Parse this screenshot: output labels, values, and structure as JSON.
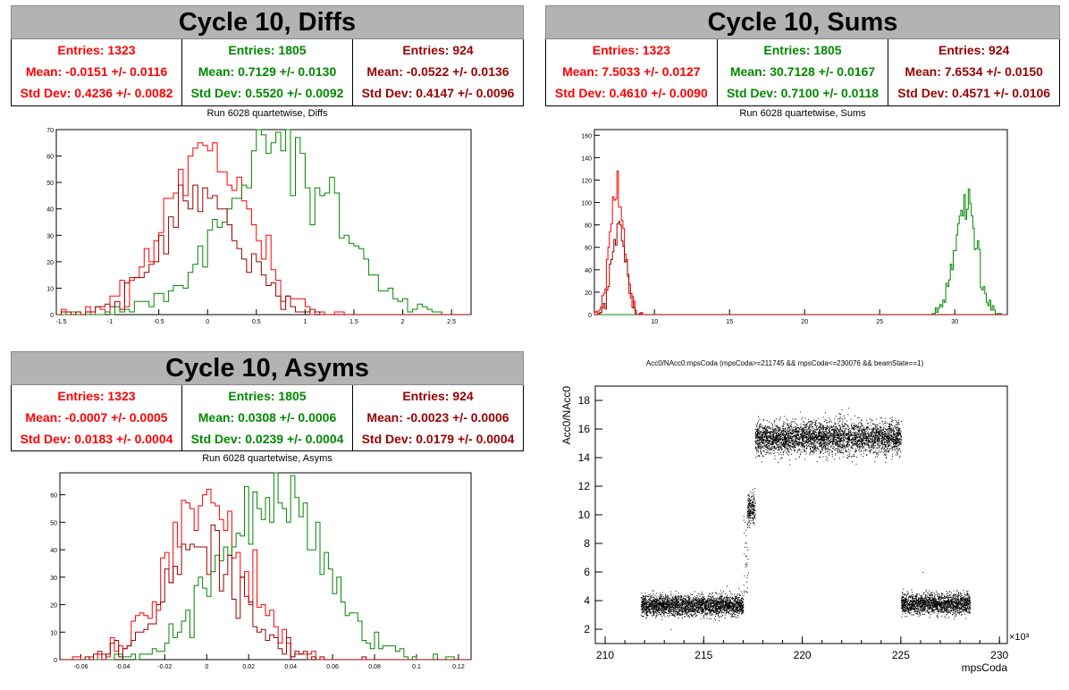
{
  "colors": {
    "red": "#ff0000",
    "green": "#008800",
    "darkred": "#990000",
    "black": "#000000",
    "titlebar": "#b3b3b3"
  },
  "panels": {
    "diffs": {
      "title": "Cycle 10, Diffs",
      "subtitle": "Run 6028 quartetwise, Diffs",
      "stats": [
        {
          "entries": "Entries: 1323",
          "mean": "Mean: -0.0151 +/- 0.0116",
          "std": "Std Dev: 0.4236 +/- 0.0082",
          "color": "#ff0000"
        },
        {
          "entries": "Entries: 1805",
          "mean": "Mean: 0.7129 +/- 0.0130",
          "std": "Std Dev: 0.5520 +/- 0.0092",
          "color": "#008800"
        },
        {
          "entries": "Entries: 924",
          "mean": "Mean: -0.0522 +/- 0.0136",
          "std": "Std Dev: 0.4147 +/- 0.0096",
          "color": "#990000"
        }
      ]
    },
    "sums": {
      "title": "Cycle 10, Sums",
      "subtitle": "Run 6028 quartetwise, Sums",
      "stats": [
        {
          "entries": "Entries: 1323",
          "mean": "Mean: 7.5033 +/- 0.0127",
          "std": "Std Dev: 0.4610 +/- 0.0090",
          "color": "#ff0000"
        },
        {
          "entries": "Entries: 1805",
          "mean": "Mean: 30.7128 +/- 0.0167",
          "std": "Std Dev: 0.7100 +/- 0.0118",
          "color": "#008800"
        },
        {
          "entries": "Entries: 924",
          "mean": "Mean: 7.6534 +/- 0.0150",
          "std": "Std Dev: 0.4571 +/- 0.0106",
          "color": "#990000"
        }
      ]
    },
    "asyms": {
      "title": "Cycle 10, Asyms",
      "subtitle": "Run 6028 quartetwise, Asyms",
      "stats": [
        {
          "entries": "Entries: 1323",
          "mean": "Mean: -0.0007 +/- 0.0005",
          "std": "Std Dev: 0.0183 +/- 0.0004",
          "color": "#ff0000"
        },
        {
          "entries": "Entries: 1805",
          "mean": "Mean: 0.0308 +/- 0.0006",
          "std": "Std Dev: 0.0239 +/- 0.0004",
          "color": "#008800"
        },
        {
          "entries": "Entries: 924",
          "mean": "Mean: -0.0023 +/- 0.0006",
          "std": "Std Dev: 0.0179 +/- 0.0004",
          "color": "#990000"
        }
      ]
    }
  },
  "chart_data": [
    {
      "id": "diffs",
      "type": "histogram",
      "xlim": [
        -1.55,
        2.7
      ],
      "ylim": [
        0,
        70
      ],
      "xticks": [
        -1.5,
        -1,
        -0.5,
        0,
        0.5,
        1,
        1.5,
        2,
        2.5
      ],
      "xtick_labels": [
        "-1.5",
        "-1",
        "-0.5",
        "0",
        "0.5",
        "1",
        "1.5",
        "2",
        "2.5"
      ],
      "yticks": [
        0,
        10,
        20,
        30,
        40,
        50,
        60,
        70
      ],
      "series": [
        {
          "color": "#ff0000",
          "entries": 1323,
          "mean": -0.0151,
          "sd": 0.4236,
          "bin_width": 0.05
        },
        {
          "color": "#008800",
          "entries": 1805,
          "mean": 0.7129,
          "sd": 0.552,
          "bin_width": 0.05
        },
        {
          "color": "#990000",
          "entries": 924,
          "mean": -0.0522,
          "sd": 0.4147,
          "bin_width": 0.05
        }
      ]
    },
    {
      "id": "sums",
      "type": "histogram",
      "xlim": [
        6,
        33.5
      ],
      "ylim": [
        0,
        165
      ],
      "xticks": [
        10,
        15,
        20,
        25,
        30
      ],
      "xtick_labels": [
        "10",
        "15",
        "20",
        "25",
        "30"
      ],
      "yticks": [
        0,
        20,
        40,
        60,
        80,
        100,
        120,
        140,
        160
      ],
      "series": [
        {
          "color": "#ff0000",
          "entries": 1323,
          "mean": 7.5033,
          "sd": 0.461,
          "bin_width": 0.1
        },
        {
          "color": "#008800",
          "entries": 1805,
          "mean": 30.7128,
          "sd": 0.71,
          "bin_width": 0.1
        },
        {
          "color": "#990000",
          "entries": 924,
          "mean": 7.6534,
          "sd": 0.4571,
          "bin_width": 0.1
        }
      ]
    },
    {
      "id": "asyms",
      "type": "histogram",
      "xlim": [
        -0.07,
        0.126
      ],
      "ylim": [
        0,
        68
      ],
      "xticks": [
        -0.06,
        -0.04,
        -0.02,
        0,
        0.02,
        0.04,
        0.06,
        0.08,
        0.1,
        0.12
      ],
      "xtick_labels": [
        "-0.06",
        "-0.04",
        "-0.02",
        "0",
        "0.02",
        "0.04",
        "0.06",
        "0.08",
        "0.1",
        "0.12"
      ],
      "yticks": [
        0,
        10,
        20,
        30,
        40,
        50,
        60
      ],
      "series": [
        {
          "color": "#ff0000",
          "entries": 1323,
          "mean": -0.0007,
          "sd": 0.0183,
          "bin_width": 0.002
        },
        {
          "color": "#008800",
          "entries": 1805,
          "mean": 0.0308,
          "sd": 0.0239,
          "bin_width": 0.002
        },
        {
          "color": "#990000",
          "entries": 924,
          "mean": -0.0023,
          "sd": 0.0179,
          "bin_width": 0.002
        }
      ]
    },
    {
      "id": "scatter",
      "type": "scatter",
      "title": "Acc0/NAcc0:mpsCoda (mpsCoda>=211745 && mpsCoda<=230076 && beamState==1)",
      "xlabel": "mpsCoda",
      "ylabel": "Acc0/NAcc0",
      "x_multiplier": "×10³",
      "xlim": [
        209.5,
        230.4
      ],
      "ylim": [
        1,
        19
      ],
      "xticks": [
        210,
        215,
        220,
        225,
        230
      ],
      "xtick_labels": [
        "210",
        "215",
        "220",
        "225",
        "230"
      ],
      "yticks": [
        2,
        4,
        6,
        8,
        10,
        12,
        14,
        16,
        18
      ],
      "ytick_labels": [
        "2",
        "4",
        "6",
        "8",
        "10",
        "12",
        "14",
        "16",
        "18"
      ],
      "clusters": [
        {
          "x": [
            211.8,
            217.0
          ],
          "y_center": 3.7,
          "y_spread": 0.35
        },
        {
          "x": [
            217.2,
            217.6
          ],
          "y_center": 10.5,
          "y_spread": 0.5
        },
        {
          "x": [
            217.6,
            225.0
          ],
          "y_center": 15.4,
          "y_spread": 0.55
        },
        {
          "x": [
            225.0,
            228.5
          ],
          "y_center": 3.8,
          "y_spread": 0.35
        }
      ]
    }
  ]
}
